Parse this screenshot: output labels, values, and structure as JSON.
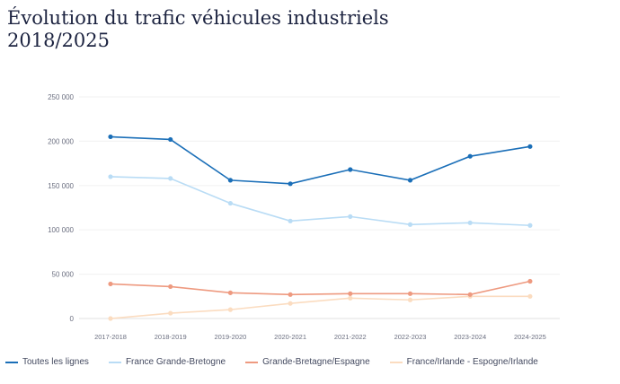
{
  "chart_data": {
    "type": "line",
    "title": "Évolution du trafic véhicules industriels 2018/2025",
    "categories": [
      "2017-2018",
      "2018-2019",
      "2019-2020",
      "2020-2021",
      "2021-2022",
      "2022-2023",
      "2023-2024",
      "2024-2025"
    ],
    "ylim": [
      0,
      250000
    ],
    "yticks": [
      0,
      50000,
      100000,
      150000,
      200000,
      250000
    ],
    "ytick_labels": [
      "0",
      "50 000",
      "100 000",
      "150 000",
      "200 000",
      "250 000"
    ],
    "grid": true,
    "legend_position": "bottom",
    "series": [
      {
        "name": "Toutes les lignes",
        "color": "#1b6fb8",
        "values": [
          205000,
          202000,
          156000,
          152000,
          168000,
          156000,
          183000,
          194000
        ]
      },
      {
        "name": "France Grande-Bretogne",
        "color": "#b9dcf5",
        "values": [
          160000,
          158000,
          130000,
          110000,
          115000,
          106000,
          108000,
          105000
        ]
      },
      {
        "name": "Grande-Bretagne/Espagne",
        "color": "#ee9a80",
        "values": [
          39000,
          36000,
          29000,
          27000,
          28000,
          28000,
          27000,
          42000
        ]
      },
      {
        "name": "France/Irlande - Espogne/Irlande",
        "color": "#fbdcc0",
        "values": [
          0,
          6000,
          10000,
          17000,
          23000,
          21000,
          25000,
          25000
        ]
      }
    ]
  }
}
